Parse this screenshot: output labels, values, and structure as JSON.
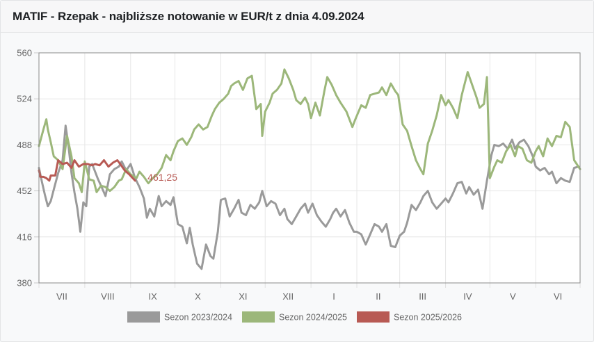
{
  "header": {
    "title": "MATIF - Rzepak - najbliższe notowanie w EUR/t z dnia 4.09.2024"
  },
  "chart_data": {
    "type": "line",
    "title": "MATIF - Rzepak - najbliższe notowanie w EUR/t z dnia 4.09.2024",
    "xlabel": "",
    "ylabel": "",
    "x_unit": "day of season (0 = 1 July)",
    "xlim": [
      0,
      366
    ],
    "ylim": [
      380,
      560
    ],
    "yticks": [
      380,
      416,
      452,
      488,
      524,
      560
    ],
    "xtick_labels": [
      "VII",
      "VIII",
      "IX",
      "X",
      "XI",
      "XII",
      "I",
      "II",
      "III",
      "IV",
      "V",
      "VI"
    ],
    "month_starts": [
      0,
      31,
      62,
      92,
      123,
      153,
      184,
      215,
      244,
      275,
      305,
      336,
      366
    ],
    "grid": true,
    "legend_position": "bottom",
    "annotation": {
      "text": "461,25",
      "series": "Sezon 2025/2026"
    },
    "series": [
      {
        "name": "Sezon 2023/2024",
        "color": "#9a9a9a",
        "points": [
          [
            0,
            470
          ],
          [
            2,
            459
          ],
          [
            4,
            449
          ],
          [
            6,
            440
          ],
          [
            8,
            444
          ],
          [
            10,
            453
          ],
          [
            13,
            466
          ],
          [
            16,
            476
          ],
          [
            18,
            503
          ],
          [
            20,
            487
          ],
          [
            22,
            466
          ],
          [
            24,
            451
          ],
          [
            26,
            438
          ],
          [
            28,
            420
          ],
          [
            30,
            443
          ],
          [
            32,
            440
          ],
          [
            34,
            471
          ],
          [
            36,
            473
          ],
          [
            40,
            461
          ],
          [
            42,
            456
          ],
          [
            45,
            448
          ],
          [
            48,
            465
          ],
          [
            51,
            469
          ],
          [
            54,
            471
          ],
          [
            56,
            475
          ],
          [
            59,
            468
          ],
          [
            62,
            473
          ],
          [
            65,
            462
          ],
          [
            68,
            455
          ],
          [
            71,
            446
          ],
          [
            73,
            431
          ],
          [
            75,
            438
          ],
          [
            78,
            432
          ],
          [
            81,
            448
          ],
          [
            83,
            440
          ],
          [
            86,
            444
          ],
          [
            89,
            441
          ],
          [
            91,
            447
          ],
          [
            94,
            426
          ],
          [
            97,
            424
          ],
          [
            100,
            411
          ],
          [
            102,
            423
          ],
          [
            104,
            410
          ],
          [
            107,
            395
          ],
          [
            110,
            391
          ],
          [
            113,
            410
          ],
          [
            116,
            401
          ],
          [
            118,
            399
          ],
          [
            121,
            420
          ],
          [
            123,
            445
          ],
          [
            126,
            446
          ],
          [
            129,
            432
          ],
          [
            132,
            438
          ],
          [
            135,
            445
          ],
          [
            137,
            435
          ],
          [
            140,
            433
          ],
          [
            143,
            441
          ],
          [
            146,
            438
          ],
          [
            149,
            443
          ],
          [
            151,
            452
          ],
          [
            154,
            440
          ],
          [
            157,
            444
          ],
          [
            160,
            442
          ],
          [
            163,
            433
          ],
          [
            166,
            438
          ],
          [
            168,
            430
          ],
          [
            171,
            426
          ],
          [
            174,
            432
          ],
          [
            177,
            438
          ],
          [
            180,
            442
          ],
          [
            182,
            435
          ],
          [
            185,
            442
          ],
          [
            188,
            433
          ],
          [
            191,
            428
          ],
          [
            194,
            424
          ],
          [
            197,
            430
          ],
          [
            199,
            435
          ],
          [
            201,
            438
          ],
          [
            204,
            432
          ],
          [
            207,
            437
          ],
          [
            210,
            427
          ],
          [
            213,
            420
          ],
          [
            215,
            420
          ],
          [
            218,
            418
          ],
          [
            221,
            410
          ],
          [
            224,
            418
          ],
          [
            227,
            426
          ],
          [
            230,
            424
          ],
          [
            232,
            420
          ],
          [
            235,
            426
          ],
          [
            238,
            409
          ],
          [
            241,
            408
          ],
          [
            244,
            417
          ],
          [
            247,
            420
          ],
          [
            249,
            427
          ],
          [
            252,
            441
          ],
          [
            255,
            437
          ],
          [
            258,
            443
          ],
          [
            260,
            448
          ],
          [
            263,
            452
          ],
          [
            266,
            443
          ],
          [
            269,
            438
          ],
          [
            272,
            442
          ],
          [
            275,
            446
          ],
          [
            277,
            443
          ],
          [
            280,
            450
          ],
          [
            283,
            458
          ],
          [
            286,
            459
          ],
          [
            289,
            450
          ],
          [
            291,
            455
          ],
          [
            294,
            449
          ],
          [
            297,
            453
          ],
          [
            300,
            438
          ],
          [
            303,
            460
          ],
          [
            306,
            480
          ],
          [
            308,
            488
          ],
          [
            311,
            487
          ],
          [
            314,
            489
          ],
          [
            317,
            485
          ],
          [
            320,
            492
          ],
          [
            322,
            485
          ],
          [
            325,
            490
          ],
          [
            328,
            492
          ],
          [
            331,
            487
          ],
          [
            334,
            479
          ],
          [
            336,
            471
          ],
          [
            339,
            468
          ],
          [
            342,
            470
          ],
          [
            345,
            465
          ],
          [
            347,
            467
          ],
          [
            350,
            458
          ],
          [
            353,
            462
          ],
          [
            356,
            460
          ],
          [
            359,
            459
          ],
          [
            362,
            470
          ],
          [
            365,
            471
          ]
        ]
      },
      {
        "name": "Sezon 2024/2025",
        "color": "#9cb77a",
        "points": [
          [
            0,
            487
          ],
          [
            3,
            500
          ],
          [
            5,
            508
          ],
          [
            6,
            500
          ],
          [
            8,
            490
          ],
          [
            10,
            479
          ],
          [
            13,
            476
          ],
          [
            16,
            469
          ],
          [
            19,
            495
          ],
          [
            22,
            479
          ],
          [
            24,
            462
          ],
          [
            27,
            458
          ],
          [
            29,
            451
          ],
          [
            31,
            475
          ],
          [
            34,
            461
          ],
          [
            37,
            460
          ],
          [
            39,
            451
          ],
          [
            42,
            456
          ],
          [
            45,
            455
          ],
          [
            48,
            452
          ],
          [
            51,
            455
          ],
          [
            54,
            460
          ],
          [
            56,
            461
          ],
          [
            59,
            469
          ],
          [
            62,
            465
          ],
          [
            66,
            462
          ],
          [
            68,
            467
          ],
          [
            71,
            463
          ],
          [
            74,
            458
          ],
          [
            77,
            462
          ],
          [
            80,
            465
          ],
          [
            83,
            470
          ],
          [
            86,
            480
          ],
          [
            89,
            476
          ],
          [
            91,
            483
          ],
          [
            94,
            491
          ],
          [
            97,
            493
          ],
          [
            100,
            488
          ],
          [
            103,
            494
          ],
          [
            105,
            500
          ],
          [
            108,
            504
          ],
          [
            111,
            500
          ],
          [
            114,
            502
          ],
          [
            117,
            511
          ],
          [
            119,
            516
          ],
          [
            122,
            521
          ],
          [
            125,
            524
          ],
          [
            128,
            528
          ],
          [
            130,
            534
          ],
          [
            132,
            536
          ],
          [
            135,
            538
          ],
          [
            138,
            531
          ],
          [
            141,
            540
          ],
          [
            144,
            542
          ],
          [
            147,
            516
          ],
          [
            150,
            520
          ],
          [
            151,
            495
          ],
          [
            153,
            514
          ],
          [
            156,
            521
          ],
          [
            158,
            528
          ],
          [
            161,
            531
          ],
          [
            164,
            536
          ],
          [
            166,
            547
          ],
          [
            169,
            540
          ],
          [
            172,
            531
          ],
          [
            174,
            523
          ],
          [
            177,
            520
          ],
          [
            180,
            525
          ],
          [
            182,
            520
          ],
          [
            184,
            509
          ],
          [
            187,
            521
          ],
          [
            190,
            511
          ],
          [
            193,
            530
          ],
          [
            195,
            541
          ],
          [
            198,
            535
          ],
          [
            201,
            527
          ],
          [
            204,
            521
          ],
          [
            208,
            514
          ],
          [
            212,
            502
          ],
          [
            214,
            508
          ],
          [
            218,
            519
          ],
          [
            221,
            517
          ],
          [
            224,
            527
          ],
          [
            227,
            528
          ],
          [
            230,
            529
          ],
          [
            232,
            533
          ],
          [
            235,
            527
          ],
          [
            238,
            536
          ],
          [
            241,
            530
          ],
          [
            243,
            527
          ],
          [
            246,
            504
          ],
          [
            249,
            499
          ],
          [
            252,
            487
          ],
          [
            255,
            476
          ],
          [
            258,
            469
          ],
          [
            260,
            465
          ],
          [
            263,
            489
          ],
          [
            266,
            499
          ],
          [
            269,
            511
          ],
          [
            272,
            527
          ],
          [
            275,
            519
          ],
          [
            277,
            523
          ],
          [
            280,
            517
          ],
          [
            283,
            509
          ],
          [
            286,
            527
          ],
          [
            290,
            545
          ],
          [
            293,
            535
          ],
          [
            296,
            525
          ],
          [
            298,
            517
          ],
          [
            301,
            520
          ],
          [
            303,
            541
          ],
          [
            305,
            462
          ],
          [
            308,
            471
          ],
          [
            310,
            476
          ],
          [
            313,
            474
          ],
          [
            316,
            483
          ],
          [
            319,
            488
          ],
          [
            322,
            479
          ],
          [
            324,
            487
          ],
          [
            327,
            485
          ],
          [
            330,
            476
          ],
          [
            333,
            474
          ],
          [
            336,
            483
          ],
          [
            338,
            487
          ],
          [
            341,
            479
          ],
          [
            344,
            493
          ],
          [
            347,
            487
          ],
          [
            350,
            495
          ],
          [
            353,
            494
          ],
          [
            356,
            506
          ],
          [
            359,
            502
          ],
          [
            362,
            476
          ],
          [
            366,
            469
          ]
        ]
      },
      {
        "name": "Sezon 2025/2026",
        "color": "#b85a54",
        "points": [
          [
            0,
            468
          ],
          [
            1,
            463
          ],
          [
            3,
            463
          ],
          [
            5,
            462
          ],
          [
            7,
            460
          ],
          [
            8,
            464
          ],
          [
            11,
            464
          ],
          [
            13,
            476
          ],
          [
            16,
            473
          ],
          [
            19,
            474
          ],
          [
            22,
            470
          ],
          [
            24,
            476
          ],
          [
            27,
            471
          ],
          [
            30,
            473
          ],
          [
            33,
            473
          ],
          [
            36,
            472
          ],
          [
            38,
            473
          ],
          [
            41,
            472
          ],
          [
            44,
            476
          ],
          [
            47,
            471
          ],
          [
            50,
            474
          ],
          [
            53,
            476
          ],
          [
            55,
            473
          ],
          [
            58,
            468
          ],
          [
            61,
            465
          ],
          [
            65,
            460
          ]
        ]
      }
    ]
  }
}
